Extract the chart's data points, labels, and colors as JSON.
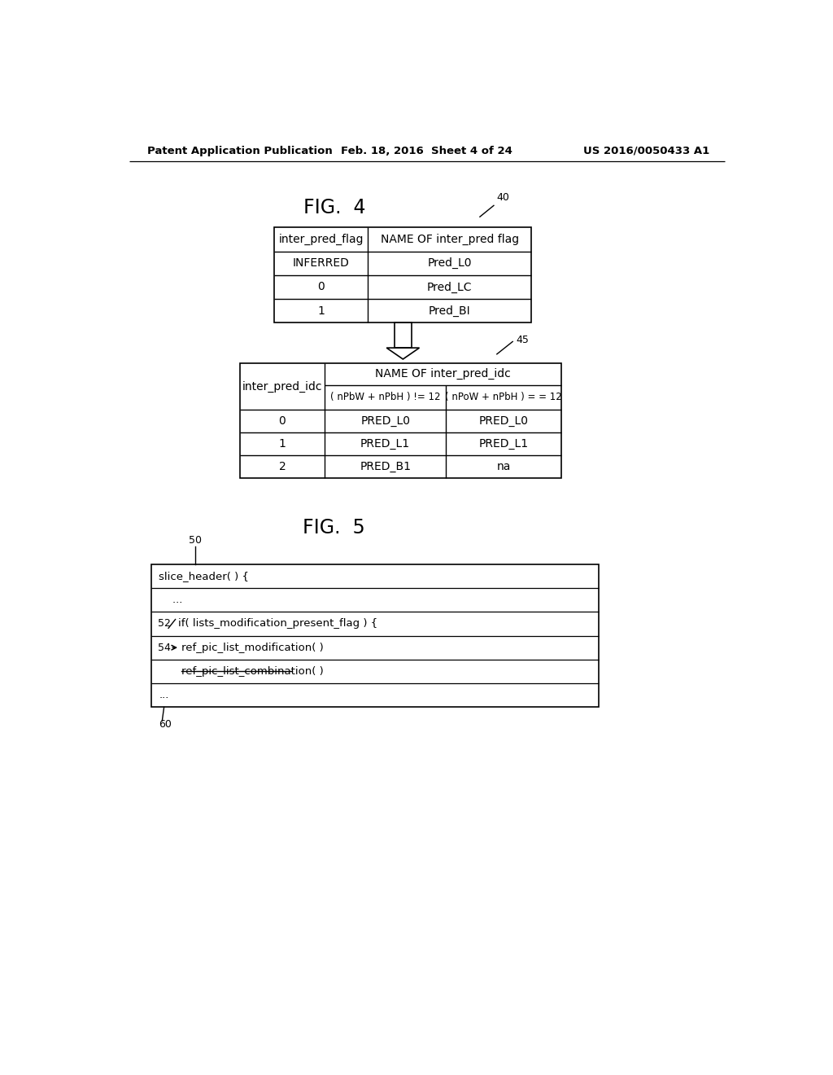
{
  "header_left": "Patent Application Publication",
  "header_mid": "Feb. 18, 2016  Sheet 4 of 24",
  "header_right": "US 2016/0050433 A1",
  "fig4_title": "FIG.  4",
  "fig5_title": "FIG.  5",
  "label_40": "40",
  "label_45": "45",
  "label_50": "50",
  "label_52": "52",
  "label_54": "54",
  "label_60": "60",
  "table1_col1_header": "inter_pred_flag",
  "table1_col2_header": "NAME OF inter_pred flag",
  "table1_rows": [
    [
      "INFERRED",
      "Pred_L0"
    ],
    [
      "0",
      "Pred_LC"
    ],
    [
      "1",
      "Pred_BI"
    ]
  ],
  "table2_col1_header": "inter_pred_idc",
  "table2_col2_header": "NAME OF inter_pred_idc",
  "table2_sub_col1": "( nPbW + nPbH ) != 12",
  "table2_sub_col2": "( nPoW + nPbH ) = = 12",
  "table2_rows": [
    [
      "0",
      "PRED_L0",
      "PRED_L0"
    ],
    [
      "1",
      "PRED_L1",
      "PRED_L1"
    ],
    [
      "2",
      "PRED_B1",
      "na"
    ]
  ],
  "background_color": "#ffffff",
  "text_color": "#000000"
}
